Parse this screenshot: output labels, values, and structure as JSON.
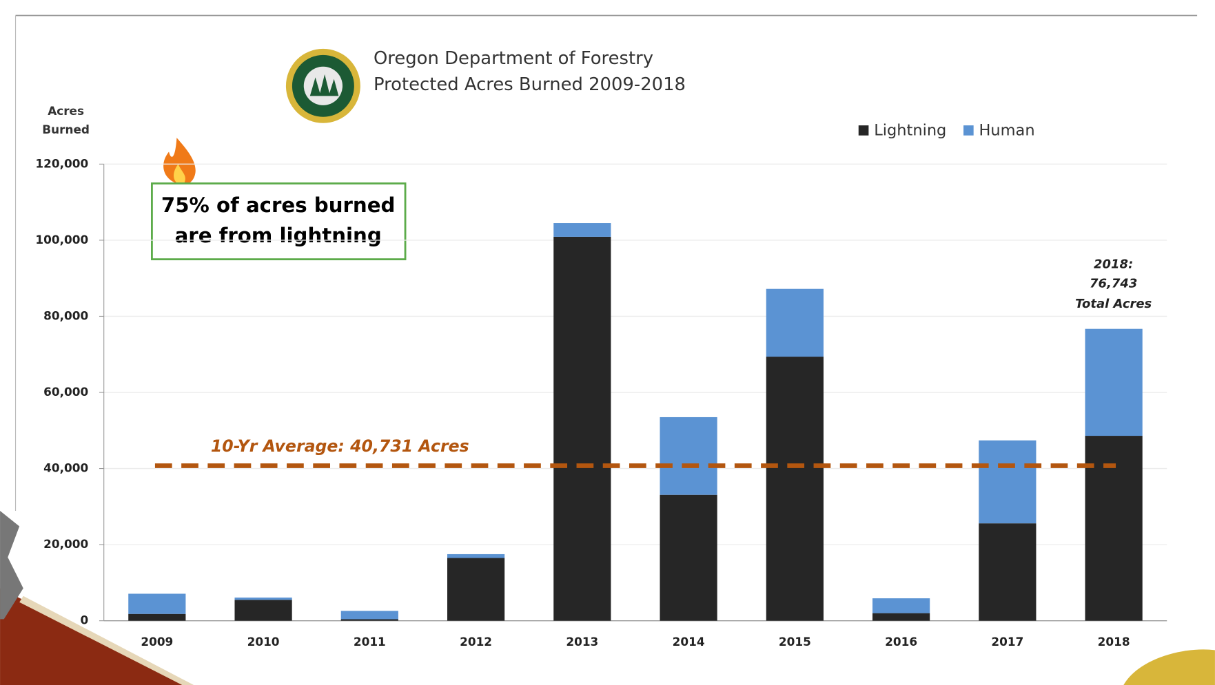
{
  "chart_data": {
    "type": "stacked_bar",
    "title": [
      "Oregon Department of Forestry",
      "Protected Acres Burned 2009-2018"
    ],
    "y_label": [
      "Acres",
      "Burned"
    ],
    "categories": [
      "2009",
      "2010",
      "2011",
      "2012",
      "2013",
      "2014",
      "2015",
      "2016",
      "2017",
      "2018"
    ],
    "series": [
      {
        "name": "Lightning",
        "color": "#262626",
        "values": [
          1800,
          5500,
          400,
          16500,
          100900,
          33100,
          69400,
          2000,
          25600,
          48600
        ]
      },
      {
        "name": "Human",
        "color": "#5b93d3",
        "values": [
          5300,
          600,
          2200,
          1000,
          3600,
          20400,
          17800,
          3900,
          21800,
          28100
        ]
      }
    ],
    "ylim": [
      0,
      120000
    ],
    "yticks": [
      0,
      {
        "value": 20000,
        "label": "20,000"
      },
      {
        "value": 40000,
        "label": "40,000"
      },
      {
        "value": 60000,
        "label": "60,000"
      },
      {
        "value": 80000,
        "label": "80,000"
      },
      {
        "value": 100000,
        "label": "100,000"
      },
      {
        "value": 120000,
        "label": "120,000"
      }
    ],
    "grid": true,
    "legend": "top-right",
    "average": {
      "value": 40731,
      "label": "10-Yr Average:  40,731 Acres",
      "color": "#b3560f"
    },
    "callout": [
      "75% of acres burned",
      "are from lightning"
    ],
    "total_note": [
      "2018:",
      "76,743",
      "Total Acres"
    ]
  }
}
